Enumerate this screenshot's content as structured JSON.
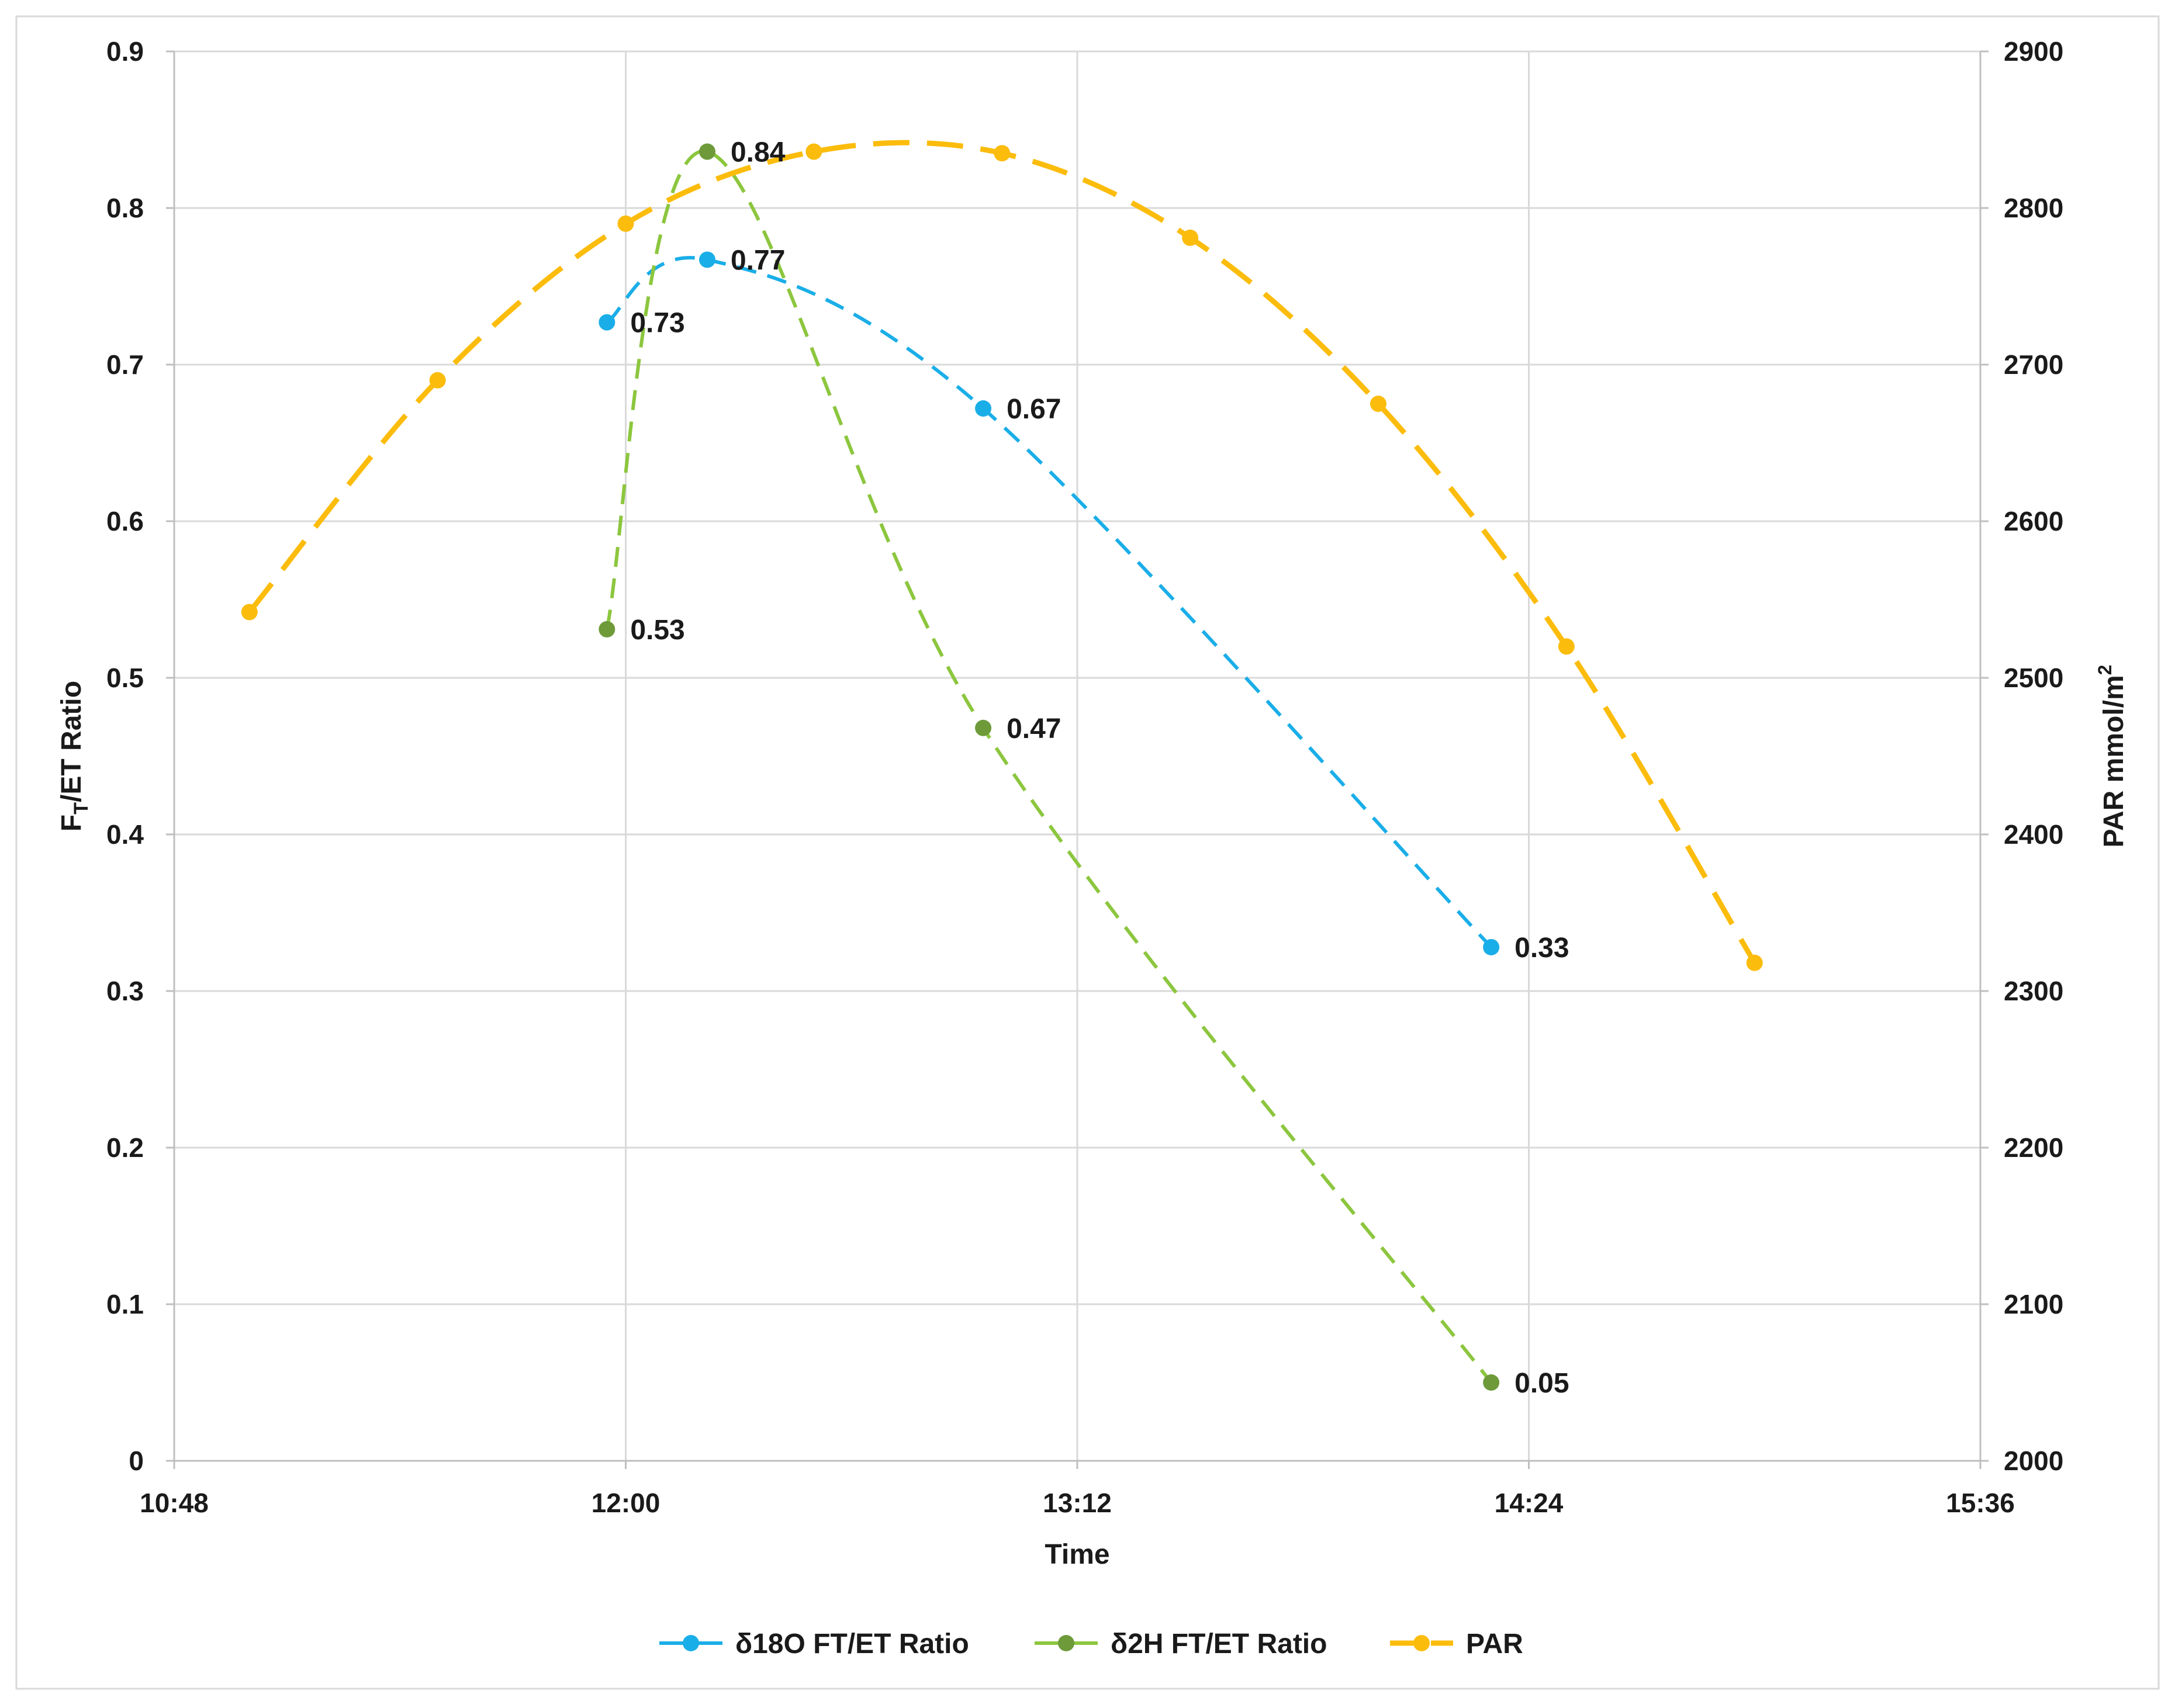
{
  "chart_data": {
    "type": "line",
    "x_axis": {
      "title": "Time",
      "range": [
        "10:48",
        "15:36"
      ],
      "ticks": [
        "10:48",
        "12:00",
        "13:12",
        "14:24",
        "15:36"
      ],
      "grid": true
    },
    "y_axis_left": {
      "title_main": "F",
      "title_sub": "T",
      "title_rest": "/ET Ratio",
      "range": [
        0,
        0.9
      ],
      "ticks": [
        "0",
        "0.1",
        "0.2",
        "0.3",
        "0.4",
        "0.5",
        "0.6",
        "0.7",
        "0.8",
        "0.9"
      ],
      "grid": true
    },
    "y_axis_right": {
      "title_main": "PAR mmol/m",
      "title_sup": "2",
      "range": [
        2000,
        2900
      ],
      "ticks": [
        "2000",
        "2100",
        "2200",
        "2300",
        "2400",
        "2500",
        "2600",
        "2700",
        "2800",
        "2900"
      ]
    },
    "legend_position": "bottom-center",
    "series": [
      {
        "name": "δ18O FT/ET Ratio",
        "axis": "left",
        "color": "#1aaee8",
        "dash": "medium",
        "smooth": true,
        "points": [
          {
            "x": "11:57",
            "y": 0.727,
            "label": "0.73"
          },
          {
            "x": "12:13",
            "y": 0.767,
            "label": "0.77"
          },
          {
            "x": "12:57",
            "y": 0.672,
            "label": "0.67"
          },
          {
            "x": "14:18",
            "y": 0.328,
            "label": "0.33"
          }
        ]
      },
      {
        "name": "δ2H FT/ET Ratio",
        "axis": "left",
        "color": "#8cc63e",
        "marker_color": "#6e9a3a",
        "dash": "medium",
        "smooth": true,
        "points": [
          {
            "x": "11:57",
            "y": 0.531,
            "label": "0.53"
          },
          {
            "x": "12:13",
            "y": 0.836,
            "label": "0.84"
          },
          {
            "x": "12:57",
            "y": 0.468,
            "label": "0.47"
          },
          {
            "x": "14:18",
            "y": 0.05,
            "label": "0.05"
          }
        ]
      },
      {
        "name": "PAR",
        "axis": "right",
        "color": "#fbbc0c",
        "dash": "long",
        "smooth": true,
        "points": [
          {
            "x": "10:60",
            "y": 2542
          },
          {
            "x": "11:30",
            "y": 2690
          },
          {
            "x": "12:00",
            "y": 2790
          },
          {
            "x": "12:30",
            "y": 2836
          },
          {
            "x": "13:00",
            "y": 2835
          },
          {
            "x": "13:30",
            "y": 2781
          },
          {
            "x": "14:00",
            "y": 2675
          },
          {
            "x": "14:30",
            "y": 2520
          },
          {
            "x": "15:00",
            "y": 2318
          }
        ]
      }
    ]
  }
}
